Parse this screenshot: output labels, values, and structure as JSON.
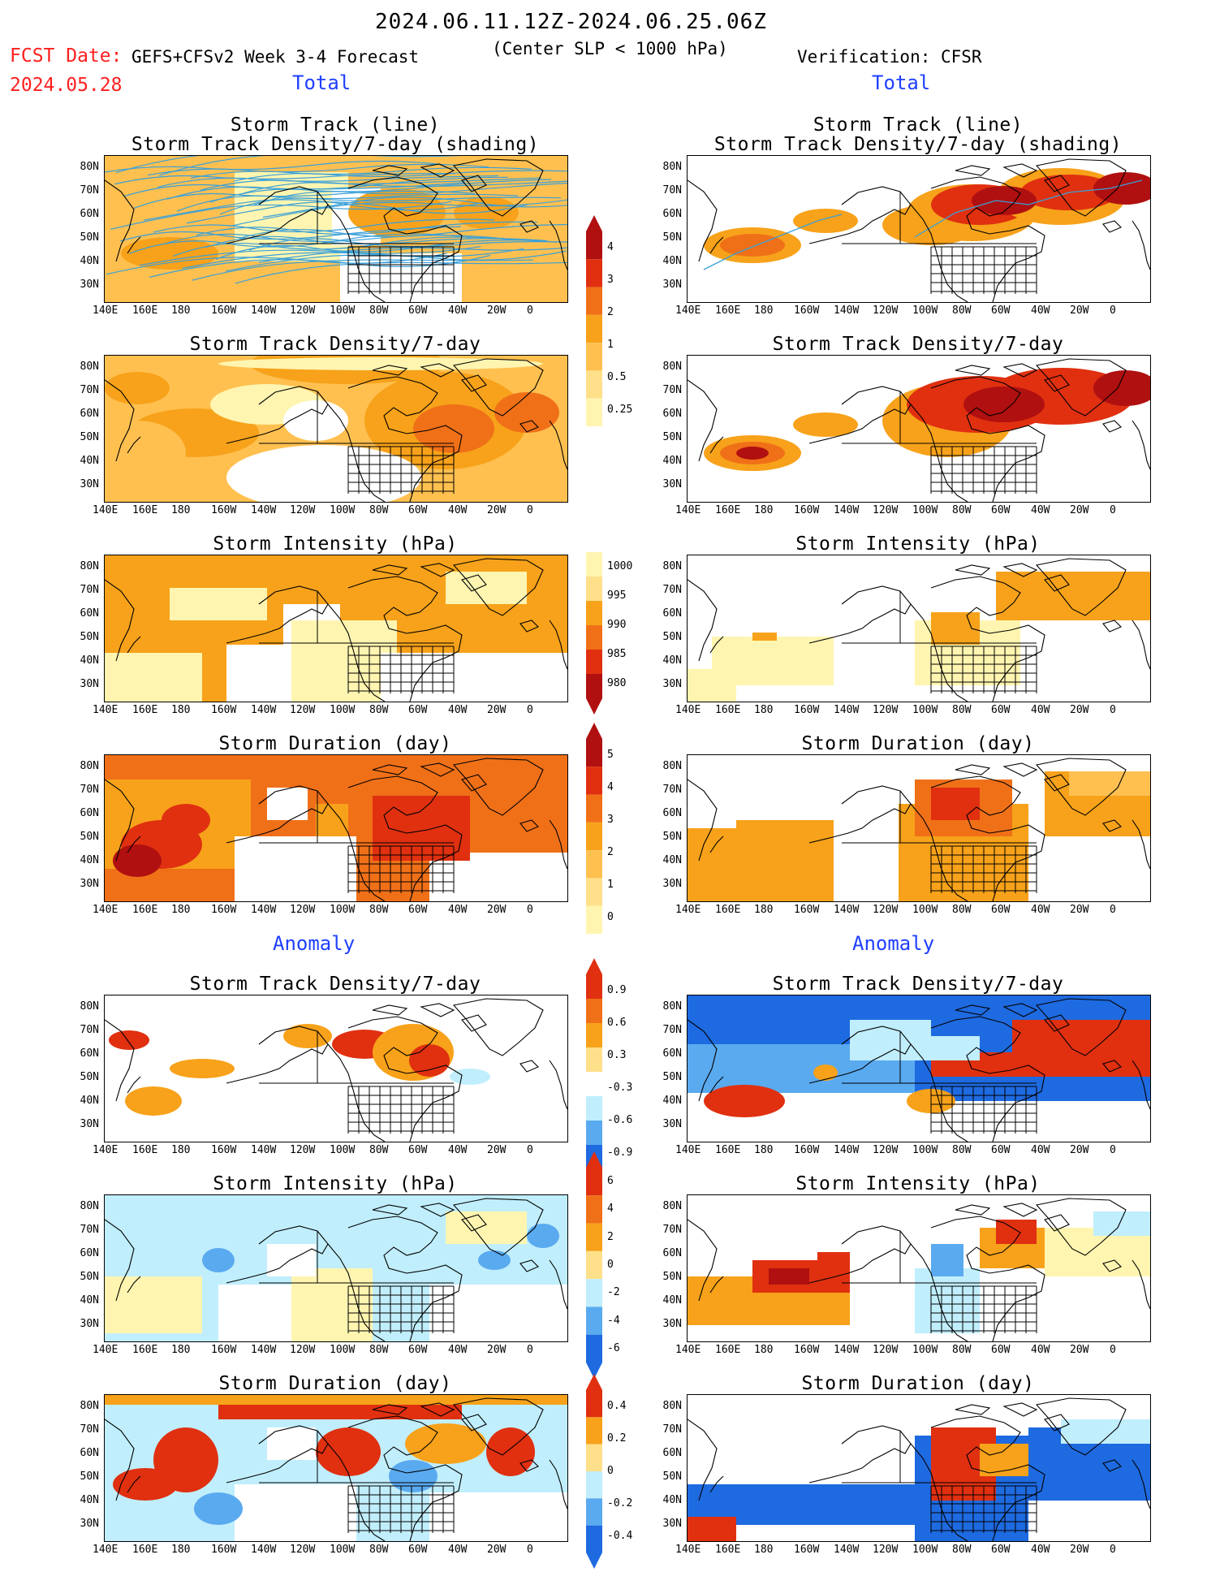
{
  "header": {
    "date_range": "2024.06.11.12Z-2024.06.25.06Z",
    "fcst_label": "FCST Date:",
    "model": "GEFS+CFSv2 Week 3-4 Forecast",
    "fcst_date": "2024.05.28",
    "criterion": "(Center SLP < 1000 hPa)",
    "verification": "Verification: CFSR"
  },
  "sections": {
    "total_left": "Total",
    "total_right": "Total",
    "anomaly_left": "Anomaly",
    "anomaly_right": "Anomaly"
  },
  "panel_titles": {
    "track_line": "Storm Track (line)",
    "track_shading": "Storm Track Density/7-day (shading)",
    "density": "Storm Track Density/7-day",
    "intensity": "Storm Intensity (hPa)",
    "duration": "Storm Duration (day)"
  },
  "axes": {
    "lon_ticks": [
      "140E",
      "160E",
      "180",
      "160W",
      "140W",
      "120W",
      "100W",
      "80W",
      "60W",
      "40W",
      "20W",
      "0"
    ],
    "lat_ticks": [
      "80N",
      "70N",
      "60N",
      "50N",
      "40N",
      "30N"
    ]
  },
  "colorbars": {
    "density_total": [
      "4",
      "3",
      "2",
      "1",
      "0.5",
      "0.25"
    ],
    "intensity_total": [
      "1000",
      "995",
      "990",
      "985",
      "980"
    ],
    "duration_total": [
      "5",
      "4",
      "3",
      "2",
      "1",
      "0"
    ],
    "density_anom": [
      "0.9",
      "0.6",
      "0.3",
      "-0.3",
      "-0.6",
      "-0.9"
    ],
    "intensity_anom": [
      "6",
      "4",
      "2",
      "0",
      "-2",
      "-4",
      "-6"
    ],
    "duration_anom": [
      "0.4",
      "0.2",
      "0",
      "-0.2",
      "-0.4"
    ]
  },
  "colors": {
    "light_yellow": "#fff5b0",
    "yellow": "#ffe08a",
    "light_orange": "#ffc050",
    "orange": "#f7a21a",
    "dark_orange": "#f07018",
    "red": "#e03010",
    "dark_red": "#b01010",
    "light_blue": "#c0eefc",
    "blue": "#5aaaf0",
    "dark_blue": "#1e6ae0",
    "track_line": "#3aa0d8"
  }
}
